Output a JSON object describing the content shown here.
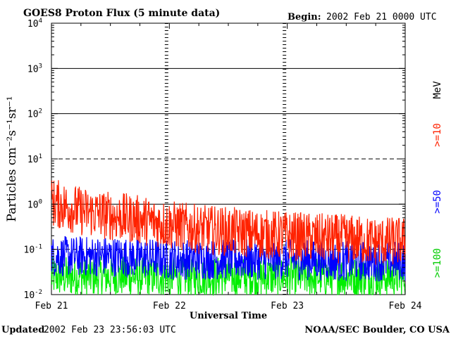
{
  "header": {
    "title": "GOES8 Proton Flux (5 minute data)",
    "begin_label": "Begin:",
    "begin_value": "2002 Feb 21 0000 UTC"
  },
  "footer": {
    "updated_label": "Updated",
    "updated_value": "2002 Feb 23 23:56:03 UTC",
    "credit": "NOAA/SEC Boulder, CO USA"
  },
  "chart_data": {
    "type": "line",
    "title": "GOES8 Proton Flux (5 minute data)",
    "xlabel": "Universal Time",
    "ylabel": "Particles cm⁻²s⁻¹sr⁻¹",
    "yscale": "log",
    "ylim": [
      0.01,
      10000
    ],
    "y_ticks": [
      {
        "base": "10",
        "exp": "-2"
      },
      {
        "base": "10",
        "exp": "-1"
      },
      {
        "base": "10",
        "exp": "0"
      },
      {
        "base": "10",
        "exp": "1"
      },
      {
        "base": "10",
        "exp": "2"
      },
      {
        "base": "10",
        "exp": "3"
      },
      {
        "base": "10",
        "exp": "4"
      }
    ],
    "x_ticks": [
      "Feb 21",
      "Feb 22",
      "Feb 23",
      "Feb 24"
    ],
    "xlim_days": [
      0,
      3
    ],
    "grid": "horizontal lines at decades; dashed at 10^-1 and 10^1",
    "legend_placement": "right, vertical",
    "unit_label": "MeV",
    "series": [
      {
        "name": ">=10",
        "color": "#ff2200",
        "x_days": [
          0,
          0.25,
          0.5,
          0.75,
          1.0,
          1.25,
          1.5,
          1.75,
          2.0,
          2.25,
          2.5,
          2.75,
          3.0
        ],
        "values": [
          1.1,
          0.7,
          0.55,
          0.45,
          0.35,
          0.28,
          0.25,
          0.22,
          0.2,
          0.18,
          0.17,
          0.15,
          0.15
        ]
      },
      {
        "name": ">=50",
        "color": "#0000ff",
        "x_days": [
          0,
          0.5,
          1.0,
          1.5,
          2.0,
          2.5,
          3.0
        ],
        "values": [
          0.07,
          0.07,
          0.06,
          0.06,
          0.06,
          0.055,
          0.055
        ]
      },
      {
        "name": ">=100",
        "color": "#00ee00",
        "x_days": [
          0,
          0.5,
          1.0,
          1.5,
          2.0,
          2.5,
          3.0
        ],
        "values": [
          0.025,
          0.025,
          0.025,
          0.025,
          0.025,
          0.025,
          0.025
        ]
      }
    ]
  }
}
